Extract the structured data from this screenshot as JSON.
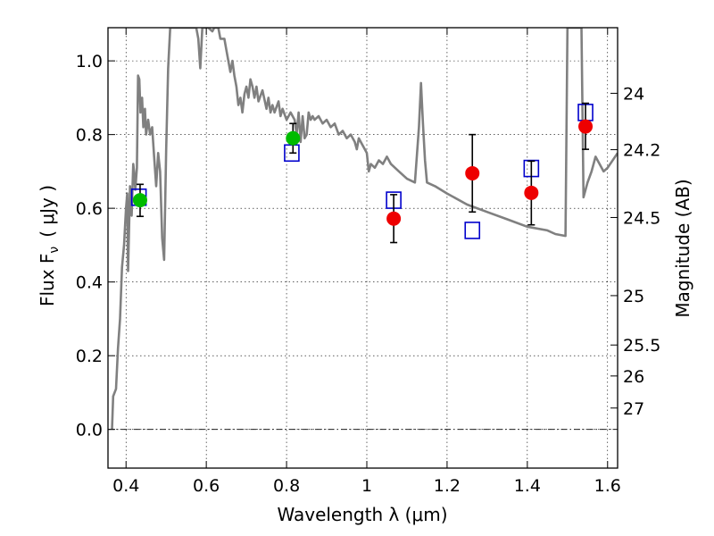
{
  "chart_data": {
    "type": "scatter",
    "xlabel": "Wavelength  λ (μm)",
    "ylabel": "Flux  F",
    "ylabel_sub": "ν",
    "ylabel_unit": "( μJy )",
    "ylabel_right": "Magnitude (AB)",
    "xlim": [
      0.355,
      1.625
    ],
    "ylim": [
      -0.105,
      1.09
    ],
    "x_ticks": [
      0.4,
      0.6,
      0.8,
      1.0,
      1.2,
      1.4,
      1.6
    ],
    "x_tick_labels": [
      "0.4",
      "0.6",
      "0.8",
      "1",
      "1.2",
      "1.4",
      "1.6"
    ],
    "y_ticks": [
      0.0,
      0.2,
      0.4,
      0.6,
      0.8,
      1.0
    ],
    "y_tick_labels": [
      "0.0",
      "0.2",
      "0.4",
      "0.6",
      "0.8",
      "1.0"
    ],
    "right_ticks": [
      {
        "label": "24",
        "flux": 0.912
      },
      {
        "label": "24.2",
        "flux": 0.759
      },
      {
        "label": "24.5",
        "flux": 0.575
      },
      {
        "label": "25",
        "flux": 0.363
      },
      {
        "label": "25.5",
        "flux": 0.229
      },
      {
        "label": "26",
        "flux": 0.145
      },
      {
        "label": "27",
        "flux": 0.058
      }
    ],
    "grid": true,
    "zero_line": true,
    "series": [
      {
        "kind": "line",
        "color": "#808080",
        "points": [
          [
            0.365,
            0.0
          ],
          [
            0.368,
            0.09
          ],
          [
            0.375,
            0.11
          ],
          [
            0.38,
            0.22
          ],
          [
            0.385,
            0.3
          ],
          [
            0.39,
            0.44
          ],
          [
            0.395,
            0.5
          ],
          [
            0.398,
            0.56
          ],
          [
            0.4,
            0.6
          ],
          [
            0.403,
            0.64
          ],
          [
            0.405,
            0.43
          ],
          [
            0.41,
            0.66
          ],
          [
            0.414,
            0.58
          ],
          [
            0.418,
            0.72
          ],
          [
            0.42,
            0.7
          ],
          [
            0.423,
            0.65
          ],
          [
            0.427,
            0.71
          ],
          [
            0.43,
            0.96
          ],
          [
            0.433,
            0.95
          ],
          [
            0.436,
            0.86
          ],
          [
            0.44,
            0.9
          ],
          [
            0.443,
            0.82
          ],
          [
            0.447,
            0.87
          ],
          [
            0.45,
            0.8
          ],
          [
            0.455,
            0.84
          ],
          [
            0.46,
            0.8
          ],
          [
            0.465,
            0.82
          ],
          [
            0.47,
            0.74
          ],
          [
            0.475,
            0.66
          ],
          [
            0.48,
            0.75
          ],
          [
            0.485,
            0.7
          ],
          [
            0.49,
            0.52
          ],
          [
            0.495,
            0.46
          ],
          [
            0.5,
            0.76
          ],
          [
            0.505,
            0.98
          ],
          [
            0.51,
            1.09
          ],
          [
            0.575,
            1.09
          ],
          [
            0.58,
            1.06
          ],
          [
            0.585,
            0.98
          ],
          [
            0.59,
            1.09
          ],
          [
            0.605,
            1.09
          ],
          [
            0.615,
            1.08
          ],
          [
            0.62,
            1.09
          ],
          [
            0.63,
            1.09
          ],
          [
            0.635,
            1.06
          ],
          [
            0.645,
            1.06
          ],
          [
            0.65,
            1.03
          ],
          [
            0.66,
            0.97
          ],
          [
            0.665,
            1.0
          ],
          [
            0.67,
            0.96
          ],
          [
            0.675,
            0.93
          ],
          [
            0.68,
            0.88
          ],
          [
            0.685,
            0.9
          ],
          [
            0.69,
            0.86
          ],
          [
            0.695,
            0.91
          ],
          [
            0.7,
            0.93
          ],
          [
            0.705,
            0.9
          ],
          [
            0.71,
            0.95
          ],
          [
            0.715,
            0.93
          ],
          [
            0.72,
            0.9
          ],
          [
            0.725,
            0.93
          ],
          [
            0.73,
            0.89
          ],
          [
            0.74,
            0.92
          ],
          [
            0.75,
            0.87
          ],
          [
            0.755,
            0.9
          ],
          [
            0.76,
            0.86
          ],
          [
            0.765,
            0.88
          ],
          [
            0.77,
            0.86
          ],
          [
            0.78,
            0.89
          ],
          [
            0.785,
            0.85
          ],
          [
            0.79,
            0.87
          ],
          [
            0.8,
            0.84
          ],
          [
            0.81,
            0.86
          ],
          [
            0.82,
            0.84
          ],
          [
            0.825,
            0.8
          ],
          [
            0.83,
            0.86
          ],
          [
            0.835,
            0.78
          ],
          [
            0.84,
            0.85
          ],
          [
            0.845,
            0.79
          ],
          [
            0.85,
            0.8
          ],
          [
            0.855,
            0.86
          ],
          [
            0.86,
            0.84
          ],
          [
            0.865,
            0.85
          ],
          [
            0.87,
            0.84
          ],
          [
            0.88,
            0.85
          ],
          [
            0.89,
            0.83
          ],
          [
            0.9,
            0.84
          ],
          [
            0.91,
            0.82
          ],
          [
            0.92,
            0.83
          ],
          [
            0.93,
            0.8
          ],
          [
            0.94,
            0.81
          ],
          [
            0.95,
            0.79
          ],
          [
            0.96,
            0.8
          ],
          [
            0.97,
            0.78
          ],
          [
            0.975,
            0.76
          ],
          [
            0.98,
            0.79
          ],
          [
            0.99,
            0.77
          ],
          [
            1.0,
            0.75
          ],
          [
            1.005,
            0.7
          ],
          [
            1.01,
            0.72
          ],
          [
            1.02,
            0.71
          ],
          [
            1.03,
            0.73
          ],
          [
            1.04,
            0.72
          ],
          [
            1.05,
            0.74
          ],
          [
            1.06,
            0.72
          ],
          [
            1.08,
            0.7
          ],
          [
            1.1,
            0.68
          ],
          [
            1.12,
            0.67
          ],
          [
            1.13,
            0.82
          ],
          [
            1.135,
            0.94
          ],
          [
            1.14,
            0.83
          ],
          [
            1.145,
            0.73
          ],
          [
            1.15,
            0.67
          ],
          [
            1.17,
            0.66
          ],
          [
            1.2,
            0.64
          ],
          [
            1.25,
            0.61
          ],
          [
            1.3,
            0.59
          ],
          [
            1.35,
            0.57
          ],
          [
            1.4,
            0.55
          ],
          [
            1.45,
            0.54
          ],
          [
            1.47,
            0.53
          ],
          [
            1.495,
            0.525
          ],
          [
            1.5,
            1.09
          ],
          [
            1.535,
            1.09
          ],
          [
            1.54,
            0.63
          ],
          [
            1.55,
            0.67
          ],
          [
            1.56,
            0.7
          ],
          [
            1.57,
            0.74
          ],
          [
            1.58,
            0.72
          ],
          [
            1.59,
            0.7
          ],
          [
            1.6,
            0.71
          ],
          [
            1.625,
            0.75
          ]
        ]
      },
      {
        "kind": "open-square",
        "color": "#0000cc",
        "points": [
          [
            0.432,
            0.63
          ],
          [
            0.813,
            0.75
          ],
          [
            1.067,
            0.622
          ],
          [
            1.263,
            0.54
          ],
          [
            1.41,
            0.708
          ],
          [
            1.545,
            0.86
          ]
        ]
      },
      {
        "kind": "filled-circle",
        "color": "#00bb00",
        "points": [
          {
            "x": 0.435,
            "y": 0.622,
            "lo": 0.578,
            "hi": 0.665
          },
          {
            "x": 0.816,
            "y": 0.79,
            "lo": 0.75,
            "hi": 0.83
          }
        ]
      },
      {
        "kind": "filled-circle",
        "color": "#ee0000",
        "points": [
          {
            "x": 1.067,
            "y": 0.572,
            "lo": 0.507,
            "hi": 0.637
          },
          {
            "x": 1.263,
            "y": 0.695,
            "lo": 0.59,
            "hi": 0.8
          },
          {
            "x": 1.41,
            "y": 0.642,
            "lo": 0.555,
            "hi": 0.728
          },
          {
            "x": 1.545,
            "y": 0.822,
            "lo": 0.76,
            "hi": 0.885
          }
        ]
      }
    ]
  }
}
